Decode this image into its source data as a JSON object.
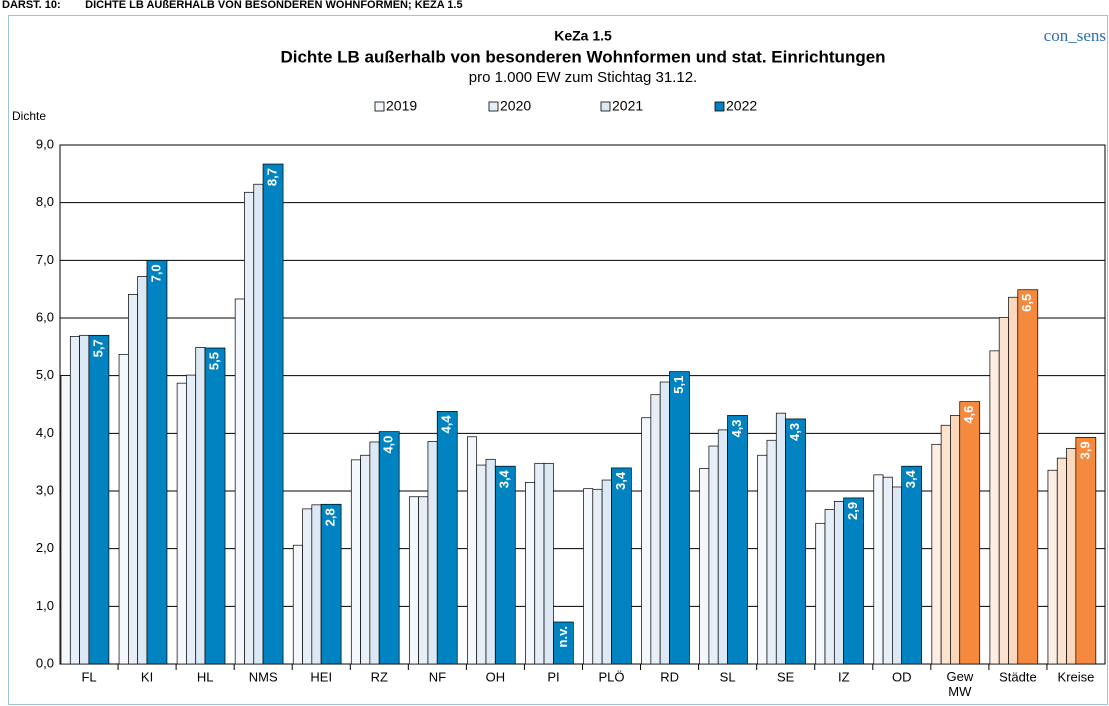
{
  "header": "DARST. 10:        DICHTE LB AUßERHALB VON BESONDEREN WOHNFORMEN; KEZA 1.5",
  "brand": "con_sens",
  "chart_data": {
    "type": "bar",
    "title": "KeZa 1.5",
    "subtitle": "Dichte LB außerhalb von besonderen Wohnformen und stat. Einrichtungen",
    "note": "pro 1.000 EW zum Stichtag 31.12.",
    "y_label": "Dichte",
    "categories": [
      "FL",
      "KI",
      "HL",
      "NMS",
      "HEI",
      "RZ",
      "NF",
      "OH",
      "PI",
      "PLÖ",
      "RD",
      "SL",
      "SE",
      "IZ",
      "OD",
      "Gew MW",
      "Städte",
      "Kreise"
    ],
    "ylim": [
      0,
      9
    ],
    "yticks": [
      {
        "value": 0,
        "label": "0,0"
      },
      {
        "value": 1,
        "label": "1,0"
      },
      {
        "value": 2,
        "label": "2,0"
      },
      {
        "value": 3,
        "label": "3,0"
      },
      {
        "value": 4,
        "label": "4,0"
      },
      {
        "value": 5,
        "label": "5,0"
      },
      {
        "value": 6,
        "label": "6,0"
      },
      {
        "value": 7,
        "label": "7,0"
      },
      {
        "value": 8,
        "label": "8,0"
      },
      {
        "value": 9,
        "label": "9,0"
      }
    ],
    "grid": true,
    "legend": "top",
    "series": [
      {
        "name": "2019",
        "color": "#f4f8fc",
        "colors": [
          "#f4f8fc",
          "#f4f8fc",
          "#f4f8fc",
          "#f4f8fc",
          "#f4f8fc",
          "#f4f8fc",
          "#f4f8fc",
          "#f4f8fc",
          "#f4f8fc",
          "#f4f8fc",
          "#f4f8fc",
          "#f4f8fc",
          "#f4f8fc",
          "#f4f8fc",
          "#f4f8fc",
          "#fdeee3",
          "#fdeee3",
          "#fdeee3"
        ],
        "values": [
          5.0,
          5.37,
          4.87,
          6.33,
          2.06,
          3.54,
          2.9,
          3.94,
          3.15,
          3.04,
          4.27,
          3.39,
          3.62,
          2.44,
          3.28,
          3.81,
          5.43,
          3.36
        ]
      },
      {
        "name": "2020",
        "color": "#e6eff7",
        "colors": [
          "#e6eff7",
          "#e6eff7",
          "#e6eff7",
          "#e6eff7",
          "#e6eff7",
          "#e6eff7",
          "#e6eff7",
          "#e6eff7",
          "#e6eff7",
          "#e6eff7",
          "#e6eff7",
          "#e6eff7",
          "#e6eff7",
          "#e6eff7",
          "#e6eff7",
          "#fce3d0",
          "#fce3d0",
          "#fce3d0"
        ],
        "values": [
          5.68,
          6.41,
          5.01,
          8.18,
          2.69,
          3.62,
          2.9,
          3.45,
          3.48,
          3.03,
          4.67,
          3.78,
          3.88,
          2.68,
          3.24,
          4.14,
          6.01,
          3.57
        ]
      },
      {
        "name": "2021",
        "color": "#dce8f3",
        "colors": [
          "#dce8f3",
          "#dce8f3",
          "#dce8f3",
          "#dce8f3",
          "#dce8f3",
          "#dce8f3",
          "#dce8f3",
          "#dce8f3",
          "#dce8f3",
          "#dce8f3",
          "#dce8f3",
          "#dce8f3",
          "#dce8f3",
          "#dce8f3",
          "#dce8f3",
          "#fbd7bd",
          "#fbd7bd",
          "#fbd7bd"
        ],
        "values": [
          5.7,
          6.72,
          5.49,
          8.32,
          2.76,
          3.85,
          3.86,
          3.55,
          3.48,
          3.19,
          4.89,
          4.06,
          4.35,
          2.82,
          3.07,
          4.31,
          6.36,
          3.74
        ]
      },
      {
        "name": "2022",
        "color": "#0083c0",
        "colors": [
          "#0083c0",
          "#0083c0",
          "#0083c0",
          "#0083c0",
          "#0083c0",
          "#0083c0",
          "#0083c0",
          "#0083c0",
          "#0083c0",
          "#0083c0",
          "#0083c0",
          "#0083c0",
          "#0083c0",
          "#0083c0",
          "#0083c0",
          "#f58a3f",
          "#f58a3f",
          "#f58a3f"
        ],
        "values": [
          5.7,
          7.0,
          5.48,
          8.67,
          2.77,
          4.03,
          4.38,
          3.43,
          null,
          3.4,
          5.07,
          4.31,
          4.25,
          2.88,
          3.43,
          4.55,
          6.49,
          3.93
        ],
        "value_labels": [
          "5,7",
          "7,0",
          "5,5",
          "8,7",
          "2,8",
          "4,0",
          "4,4",
          "3,4",
          "n.v.",
          "3,4",
          "5,1",
          "4,3",
          "4,3",
          "2,9",
          "3,4",
          "4,6",
          "6,5",
          "3,9"
        ]
      }
    ]
  }
}
